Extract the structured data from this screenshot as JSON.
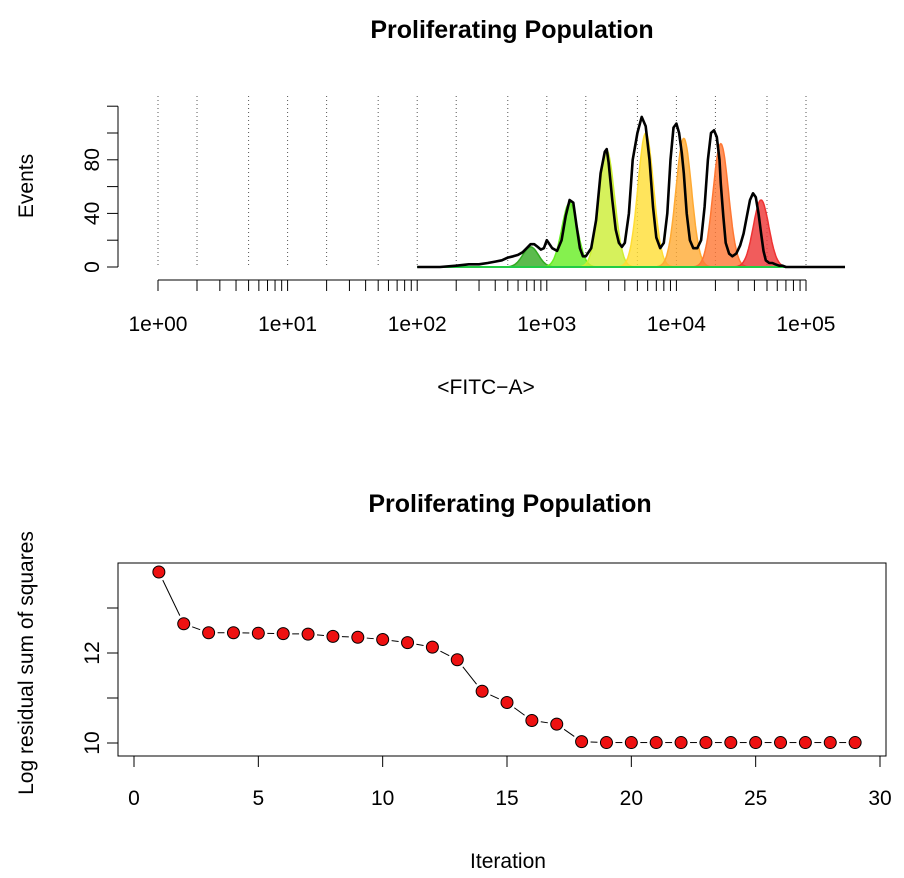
{
  "chart_data": [
    {
      "type": "area",
      "title": "Proliferating Population",
      "xlabel": "<FITC−A>",
      "ylabel": "Events",
      "x_scale": "log",
      "xlim": [
        1,
        200000
      ],
      "ylim": [
        0,
        120
      ],
      "x_tick_labels": [
        "1e+00",
        "1e+01",
        "1e+02",
        "1e+03",
        "1e+04",
        "1e+05"
      ],
      "y_tick_labels": [
        "0",
        "40",
        "80"
      ],
      "generation_means": [
        750,
        1500,
        2900,
        5800,
        11400,
        22000,
        45000
      ],
      "generation_peaks": [
        15,
        48,
        87,
        100,
        96,
        92,
        50
      ],
      "generation_colors": [
        "#33aa22",
        "#66ee22",
        "#ccee33",
        "#ffdd33",
        "#ffaa33",
        "#ff7733",
        "#ee3333"
      ],
      "observed_series": {
        "name": "",
        "x": [
          100,
          150,
          200,
          250,
          300,
          350,
          400,
          450,
          500,
          550,
          600,
          650,
          700,
          750,
          800,
          850,
          900,
          950,
          1000,
          1100,
          1200,
          1300,
          1400,
          1500,
          1600,
          1700,
          1800,
          1900,
          2000,
          2200,
          2400,
          2600,
          2800,
          2900,
          3000,
          3200,
          3400,
          3600,
          3800,
          4000,
          4300,
          4600,
          5000,
          5400,
          5800,
          6200,
          6600,
          7000,
          7500,
          8000,
          8500,
          9000,
          9500,
          10000,
          10500,
          11000,
          11400,
          12000,
          12700,
          13500,
          14500,
          15500,
          16500,
          17500,
          18500,
          19500,
          20500,
          21500,
          22000,
          23000,
          24000,
          25500,
          27000,
          29000,
          31000,
          33000,
          35000,
          37000,
          39000,
          41000,
          43000,
          45000,
          47000,
          49000,
          52000,
          55000,
          58000,
          62000,
          66000,
          70000,
          80000,
          100000,
          150000,
          200000
        ],
        "y": [
          0,
          0,
          1,
          2,
          2,
          3,
          4,
          5,
          7,
          8,
          9,
          11,
          14,
          17,
          17,
          15,
          13,
          14,
          20,
          14,
          12,
          20,
          38,
          50,
          48,
          30,
          14,
          8,
          8,
          14,
          35,
          70,
          86,
          88,
          78,
          50,
          28,
          18,
          15,
          18,
          40,
          80,
          100,
          112,
          105,
          80,
          45,
          22,
          14,
          18,
          40,
          80,
          104,
          107,
          100,
          85,
          70,
          40,
          20,
          14,
          14,
          20,
          45,
          80,
          100,
          102,
          97,
          80,
          62,
          38,
          18,
          10,
          8,
          10,
          16,
          25,
          38,
          50,
          55,
          52,
          40,
          25,
          12,
          5,
          3,
          3,
          2,
          1,
          1,
          0,
          0,
          0,
          0,
          0
        ]
      }
    },
    {
      "type": "scatter",
      "title": "Proliferating Population",
      "xlabel": "Iteration",
      "ylabel": "Log residual sum of squares",
      "xlim": [
        0,
        30
      ],
      "ylim": [
        9.9,
        13.9
      ],
      "x_tick_labels": [
        "0",
        "5",
        "10",
        "15",
        "20",
        "25",
        "30"
      ],
      "y_tick_labels": [
        "10",
        "12"
      ],
      "point_color": "#ee1111",
      "x": [
        1,
        2,
        3,
        4,
        5,
        6,
        7,
        8,
        9,
        10,
        11,
        12,
        13,
        14,
        15,
        16,
        17,
        18,
        19,
        20,
        21,
        22,
        23,
        24,
        25,
        26,
        27,
        28,
        29
      ],
      "y": [
        13.8,
        12.65,
        12.45,
        12.45,
        12.44,
        12.43,
        12.42,
        12.37,
        12.35,
        12.3,
        12.23,
        12.13,
        11.85,
        11.15,
        10.9,
        10.5,
        10.42,
        10.03,
        10.01,
        10.01,
        10.01,
        10.01,
        10.01,
        10.01,
        10.01,
        10.01,
        10.01,
        10.01,
        10.01
      ]
    }
  ]
}
